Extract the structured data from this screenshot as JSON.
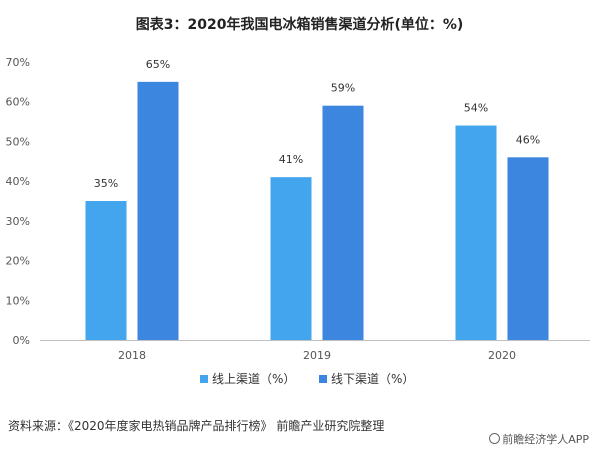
{
  "title": "图表3：2020年我国电冰箱销售渠道分析(单位：%)",
  "source": "资料来源：《2020年度家电热销品牌产品排行榜》 前瞻产业研究院整理",
  "brand": "前瞻经济学人APP",
  "colors": {
    "online": "#42A5EE",
    "offline": "#3C86E0",
    "axis": "#BFBFBF",
    "text": "#555555"
  },
  "chart_data": {
    "type": "bar",
    "title": "图表3：2020年我国电冰箱销售渠道分析(单位：%)",
    "categories": [
      "2018",
      "2019",
      "2020"
    ],
    "series": [
      {
        "name": "线上渠道（%）",
        "values": [
          35,
          41,
          54
        ],
        "labels": [
          "35%",
          "41%",
          "54%"
        ]
      },
      {
        "name": "线下渠道（%）",
        "values": [
          65,
          59,
          46
        ],
        "labels": [
          "65%",
          "59%",
          "46%"
        ]
      }
    ],
    "yticks": [
      "0%",
      "10%",
      "20%",
      "30%",
      "40%",
      "50%",
      "60%",
      "70%"
    ],
    "ylim": [
      0,
      70
    ],
    "grid": false,
    "legend": "bottom"
  }
}
